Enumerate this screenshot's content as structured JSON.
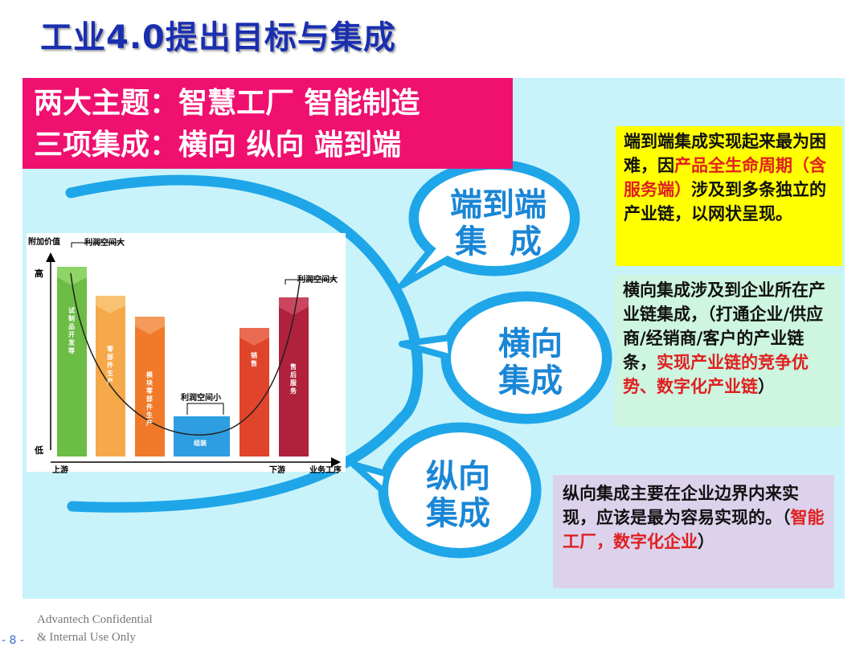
{
  "slide": {
    "title": "工业4.0提出目标与集成",
    "themes": {
      "line1": "两大主题：智慧工厂 智能制造",
      "line2": "三项集成：横向 纵向 端到端"
    },
    "bubbles": [
      {
        "line1": "端到端",
        "line2": "集  成"
      },
      {
        "line1": "横向",
        "line2": "集成"
      },
      {
        "line1": "纵向",
        "line2": "集成"
      }
    ],
    "boxes": {
      "e2e": {
        "part1": "端到端集成实现起来最为困难，因",
        "red": "产品全生命周期（含服务端）",
        "part2": "涉及到多条独立的产业链，以网状呈现。"
      },
      "horizontal": {
        "part1": "横向集成涉及到企业所在产业链集成，（打通企业/供应商/经销商/客户的产业链条，",
        "red": "实现产业链的竞争优势、数字化产业链",
        "part2": "）"
      },
      "vertical": {
        "part1": "纵向集成主要在企业边界内来实现，应该是最为容易实现的。（",
        "red": "智能工厂，数字化企业",
        "part2": "）"
      }
    },
    "chart": {
      "y_title": "附加价值",
      "profit_big_left": "利润空间大",
      "profit_big_right": "利润空间大",
      "profit_small": "利润空间小",
      "high": "高",
      "low": "低",
      "upstream": "上游",
      "downstream": "下游",
      "x_title": "业务工序",
      "bars": [
        {
          "label": "试制品开发等",
          "color": "#6cbd45"
        },
        {
          "label": "零部件生产",
          "color": "#f6a94a"
        },
        {
          "label": "模块零部件生产",
          "color": "#f07a2a"
        },
        {
          "label": "组装",
          "color": "#2e9ee0"
        },
        {
          "label": "销售",
          "color": "#e0452c"
        },
        {
          "label": "售后服务",
          "color": "#b0213c"
        }
      ]
    },
    "footer": {
      "line1": "Advantech Confidential",
      "line2": "& Internal Use Only",
      "page": "- 8 -"
    }
  }
}
